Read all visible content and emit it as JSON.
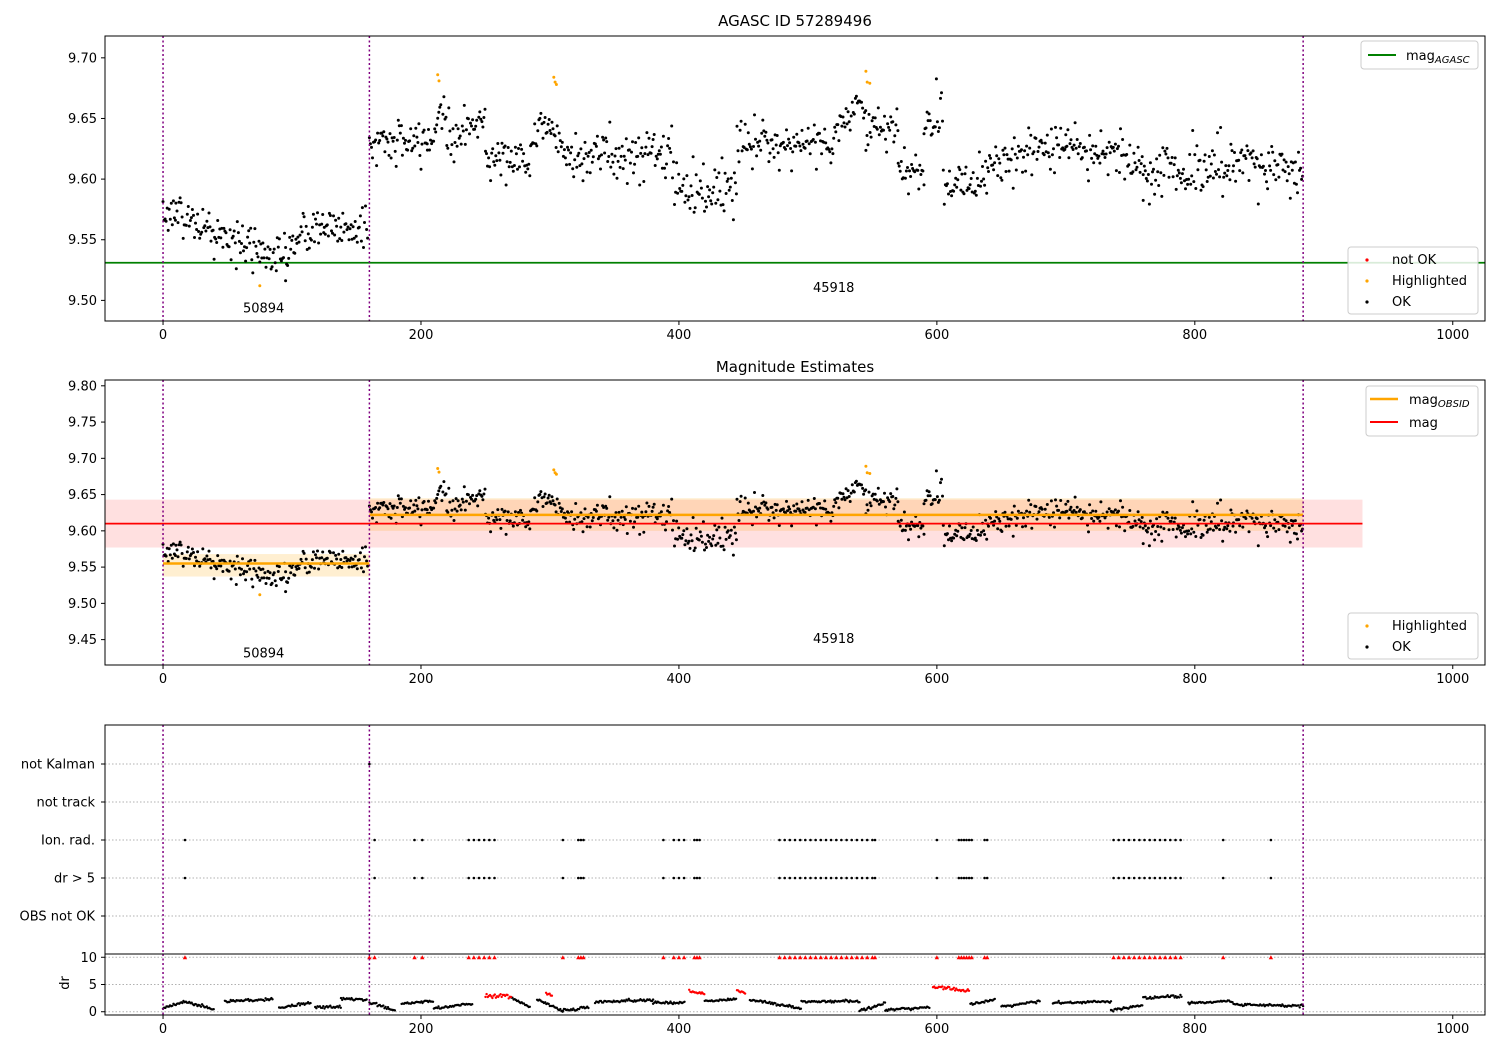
{
  "colors": {
    "ok": "#000000",
    "highlighted": "#ffa500",
    "not_ok": "#ff0000",
    "agasc": "#008000",
    "mag": "#ff0000",
    "band_mag": "#ffcccc",
    "mag_obsid": "#ffa500",
    "obsid_sep": "#800080",
    "grid": "#b0b0b0"
  },
  "chart_data": [
    {
      "type": "scatter",
      "title": "AGASC ID 57289496",
      "xlim": [
        -45,
        1025
      ],
      "ylim": [
        9.483,
        9.718
      ],
      "x_ticks": [
        0,
        200,
        400,
        600,
        800,
        1000
      ],
      "y_ticks": [
        9.5,
        9.55,
        9.6,
        9.65,
        9.7
      ],
      "y_tick_labels": [
        "9.50",
        "9.55",
        "9.60",
        "9.65",
        "9.70"
      ],
      "obsid_boundaries": [
        0,
        160,
        884
      ],
      "obsid_labels": [
        {
          "text": "50894",
          "x": 78,
          "y": 9.494
        },
        {
          "text": "45918",
          "x": 520,
          "y": 9.511
        }
      ],
      "mag_agasc": 9.531,
      "legend_upper": [
        "mag_AGASC"
      ],
      "legend_lower": [
        "not OK",
        "Highlighted",
        "OK"
      ],
      "series": [
        {
          "name": "OK",
          "segments": [
            {
              "x0": 0,
              "x1": 10,
              "y0": 9.574,
              "y1": 9.572,
              "sd": 0.008
            },
            {
              "x0": 10,
              "x1": 40,
              "y0": 9.572,
              "y1": 9.555,
              "sd": 0.01
            },
            {
              "x0": 40,
              "x1": 75,
              "y0": 9.555,
              "y1": 9.54,
              "sd": 0.009
            },
            {
              "x0": 75,
              "x1": 95,
              "y0": 9.54,
              "y1": 9.535,
              "sd": 0.008
            },
            {
              "x0": 95,
              "x1": 125,
              "y0": 9.54,
              "y1": 9.565,
              "sd": 0.01
            },
            {
              "x0": 125,
              "x1": 159,
              "y0": 9.56,
              "y1": 9.56,
              "sd": 0.009
            },
            {
              "x0": 160,
              "x1": 205,
              "y0": 9.63,
              "y1": 9.63,
              "sd": 0.009
            },
            {
              "x0": 205,
              "x1": 220,
              "y0": 9.63,
              "y1": 9.665,
              "sd": 0.01
            },
            {
              "x0": 220,
              "x1": 250,
              "y0": 9.632,
              "y1": 9.65,
              "sd": 0.008
            },
            {
              "x0": 250,
              "x1": 285,
              "y0": 9.62,
              "y1": 9.615,
              "sd": 0.008
            },
            {
              "x0": 285,
              "x1": 300,
              "y0": 9.63,
              "y1": 9.65,
              "sd": 0.008
            },
            {
              "x0": 300,
              "x1": 320,
              "y0": 9.64,
              "y1": 9.615,
              "sd": 0.01
            },
            {
              "x0": 320,
              "x1": 360,
              "y0": 9.62,
              "y1": 9.62,
              "sd": 0.01
            },
            {
              "x0": 360,
              "x1": 395,
              "y0": 9.618,
              "y1": 9.625,
              "sd": 0.01
            },
            {
              "x0": 395,
              "x1": 445,
              "y0": 9.595,
              "y1": 9.59,
              "sd": 0.012
            },
            {
              "x0": 445,
              "x1": 520,
              "y0": 9.63,
              "y1": 9.63,
              "sd": 0.009
            },
            {
              "x0": 520,
              "x1": 545,
              "y0": 9.64,
              "y1": 9.665,
              "sd": 0.008
            },
            {
              "x0": 545,
              "x1": 570,
              "y0": 9.64,
              "y1": 9.64,
              "sd": 0.01
            },
            {
              "x0": 570,
              "x1": 590,
              "y0": 9.605,
              "y1": 9.605,
              "sd": 0.008
            },
            {
              "x0": 590,
              "x1": 605,
              "y0": 9.645,
              "y1": 9.66,
              "sd": 0.01
            },
            {
              "x0": 605,
              "x1": 640,
              "y0": 9.595,
              "y1": 9.605,
              "sd": 0.01
            },
            {
              "x0": 640,
              "x1": 700,
              "y0": 9.615,
              "y1": 9.625,
              "sd": 0.01
            },
            {
              "x0": 700,
              "x1": 760,
              "y0": 9.63,
              "y1": 9.615,
              "sd": 0.01
            },
            {
              "x0": 760,
              "x1": 830,
              "y0": 9.605,
              "y1": 9.61,
              "sd": 0.011
            },
            {
              "x0": 830,
              "x1": 884,
              "y0": 9.615,
              "y1": 9.605,
              "sd": 0.011
            }
          ]
        },
        {
          "name": "Highlighted",
          "points": [
            [
              75,
              9.512
            ],
            [
              213,
              9.686
            ],
            [
              214,
              9.681
            ],
            [
              303,
              9.684
            ],
            [
              304,
              9.68
            ],
            [
              305,
              9.678
            ],
            [
              545,
              9.689
            ],
            [
              546,
              9.68
            ],
            [
              548,
              9.679
            ]
          ]
        },
        {
          "name": "not OK",
          "points": []
        }
      ]
    },
    {
      "type": "scatter",
      "title": "Magnitude Estimates",
      "xlim": [
        -45,
        1025
      ],
      "ylim": [
        9.415,
        9.808
      ],
      "x_ticks": [
        0,
        200,
        400,
        600,
        800,
        1000
      ],
      "y_ticks": [
        9.45,
        9.5,
        9.55,
        9.6,
        9.65,
        9.7,
        9.75,
        9.8
      ],
      "y_tick_labels": [
        "9.45",
        "9.50",
        "9.55",
        "9.60",
        "9.65",
        "9.70",
        "9.75",
        "9.80"
      ],
      "obsid_boundaries": [
        0,
        160,
        884
      ],
      "obsid_labels": [
        {
          "text": "50894",
          "x": 78,
          "y": 9.432
        },
        {
          "text": "45918",
          "x": 520,
          "y": 9.452
        }
      ],
      "mag": 9.61,
      "mag_band": [
        9.577,
        9.643
      ],
      "mag_band_x": [
        -45,
        930
      ],
      "mag_obsid": [
        {
          "x0": 0,
          "x1": 160,
          "mag": 9.555,
          "band": [
            9.537,
            9.568
          ]
        },
        {
          "x0": 160,
          "x1": 884,
          "mag": 9.622,
          "band": [
            9.6,
            9.645
          ]
        }
      ],
      "legend_upper": [
        "mag_OBSID",
        "mag"
      ],
      "legend_lower": [
        "Highlighted",
        "OK"
      ],
      "series": [
        {
          "name": "OK",
          "same_as_panel": 0
        },
        {
          "name": "Highlighted",
          "same_as_panel": 0
        }
      ]
    },
    {
      "type": "scatter",
      "xlim": [
        -45,
        1025
      ],
      "x_ticks": [
        0,
        200,
        400,
        600,
        800,
        1000
      ],
      "categories": [
        "OBS not OK",
        "dr > 5",
        "Ion. rad.",
        "not track",
        "not Kalman"
      ],
      "obsid_boundaries": [
        0,
        160,
        884
      ],
      "flag_points": {
        "not Kalman": [
          160
        ],
        "not track": [],
        "Ion. rad.": [
          17,
          164,
          195,
          201,
          237,
          241,
          245,
          249,
          253,
          257,
          310,
          322,
          324,
          326,
          388,
          396,
          400,
          404,
          412,
          414,
          416,
          478,
          482,
          486,
          490,
          494,
          498,
          502,
          506,
          510,
          514,
          518,
          522,
          526,
          530,
          534,
          538,
          542,
          546,
          550,
          552,
          600,
          617,
          619,
          621,
          623,
          625,
          627,
          637,
          639,
          737,
          741,
          745,
          749,
          753,
          757,
          761,
          765,
          769,
          773,
          777,
          781,
          785,
          789,
          822,
          859
        ],
        "dr > 5": [
          17,
          164,
          195,
          201,
          237,
          241,
          245,
          249,
          253,
          257,
          310,
          322,
          324,
          326,
          388,
          396,
          400,
          404,
          412,
          414,
          416,
          478,
          482,
          486,
          490,
          494,
          498,
          502,
          506,
          510,
          514,
          518,
          522,
          526,
          530,
          534,
          538,
          542,
          546,
          550,
          552,
          600,
          617,
          619,
          621,
          623,
          625,
          627,
          637,
          639,
          737,
          741,
          745,
          749,
          753,
          757,
          761,
          765,
          769,
          773,
          777,
          781,
          785,
          789,
          822,
          859
        ],
        "OBS not OK": []
      }
    },
    {
      "type": "scatter",
      "ylabel": "dr",
      "xlim": [
        -45,
        1025
      ],
      "ylim": [
        -0.6,
        10.6
      ],
      "x_ticks": [
        0,
        200,
        400,
        600,
        800,
        1000
      ],
      "y_ticks": [
        0,
        5,
        10
      ],
      "y_tick_labels": [
        "0",
        "5",
        "10"
      ],
      "obsid_boundaries": [
        0,
        160,
        884
      ],
      "clip_value": 10,
      "clipped_marker_color": "#ff0000",
      "red_segments": [
        {
          "x0": 250,
          "x1": 270,
          "y0": 2.8,
          "y1": 2.8
        },
        {
          "x0": 297,
          "x1": 302,
          "y0": 3.4,
          "y1": 2.9
        },
        {
          "x0": 408,
          "x1": 420,
          "y0": 3.8,
          "y1": 3.3
        },
        {
          "x0": 445,
          "x1": 452,
          "y0": 4.0,
          "y1": 3.4
        },
        {
          "x0": 597,
          "x1": 625,
          "y0": 4.6,
          "y1": 3.7
        }
      ],
      "series_segments": [
        {
          "x0": 0,
          "x1": 15,
          "y0": 0.6,
          "y1": 1.8
        },
        {
          "x0": 15,
          "x1": 40,
          "y0": 2.0,
          "y1": 0.4
        },
        {
          "x0": 48,
          "x1": 85,
          "y0": 1.9,
          "y1": 2.3
        },
        {
          "x0": 90,
          "x1": 115,
          "y0": 0.7,
          "y1": 1.7
        },
        {
          "x0": 118,
          "x1": 138,
          "y0": 0.8,
          "y1": 0.9
        },
        {
          "x0": 138,
          "x1": 158,
          "y0": 2.4,
          "y1": 2.2
        },
        {
          "x0": 160,
          "x1": 180,
          "y0": 1.7,
          "y1": 0.2
        },
        {
          "x0": 185,
          "x1": 210,
          "y0": 1.4,
          "y1": 2.0
        },
        {
          "x0": 210,
          "x1": 240,
          "y0": 0.6,
          "y1": 1.5
        },
        {
          "x0": 270,
          "x1": 285,
          "y0": 2.6,
          "y1": 0.9
        },
        {
          "x0": 290,
          "x1": 310,
          "y0": 2.2,
          "y1": 0.2
        },
        {
          "x0": 310,
          "x1": 330,
          "y0": 0.2,
          "y1": 0.8
        },
        {
          "x0": 335,
          "x1": 380,
          "y0": 1.8,
          "y1": 2.2
        },
        {
          "x0": 380,
          "x1": 405,
          "y0": 1.7,
          "y1": 1.6
        },
        {
          "x0": 420,
          "x1": 445,
          "y0": 1.9,
          "y1": 2.4
        },
        {
          "x0": 455,
          "x1": 495,
          "y0": 2.2,
          "y1": 0.6
        },
        {
          "x0": 495,
          "x1": 540,
          "y0": 1.9,
          "y1": 1.9
        },
        {
          "x0": 540,
          "x1": 560,
          "y0": 0.2,
          "y1": 1.5
        },
        {
          "x0": 560,
          "x1": 595,
          "y0": 0.3,
          "y1": 0.9
        },
        {
          "x0": 626,
          "x1": 645,
          "y0": 1.4,
          "y1": 2.2
        },
        {
          "x0": 650,
          "x1": 680,
          "y0": 0.9,
          "y1": 1.9
        },
        {
          "x0": 690,
          "x1": 735,
          "y0": 1.6,
          "y1": 1.9
        },
        {
          "x0": 735,
          "x1": 760,
          "y0": 0.2,
          "y1": 1.3
        },
        {
          "x0": 760,
          "x1": 790,
          "y0": 2.6,
          "y1": 2.8
        },
        {
          "x0": 795,
          "x1": 830,
          "y0": 1.6,
          "y1": 1.9
        },
        {
          "x0": 830,
          "x1": 884,
          "y0": 1.3,
          "y1": 1.1
        }
      ]
    }
  ]
}
